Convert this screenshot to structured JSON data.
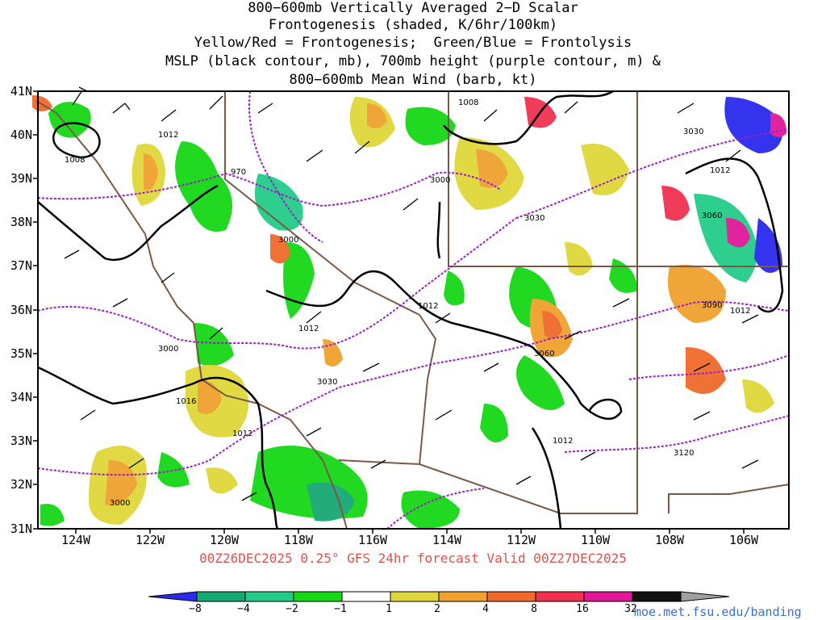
{
  "title_lines": [
    "800−600mb Vertically Averaged 2−D Scalar",
    "Frontogenesis (shaded, K/6hr/100km)",
    "Yellow/Red = Frontogenesis;  Green/Blue = Frontolysis",
    "MSLP (black contour, mb), 700mb height (purple contour, m) &",
    "800−600mb Mean Wind (barb, kt)"
  ],
  "subtitle": "00Z26DEC2025 0.25° GFS 24hr forecast Valid 00Z27DEC2025",
  "url": "moe.met.fsu.edu/banding",
  "lat_labels": [
    "41N",
    "40N",
    "39N",
    "38N",
    "37N",
    "36N",
    "35N",
    "34N",
    "33N",
    "32N",
    "31N"
  ],
  "lon_labels": [
    "124W",
    "122W",
    "120W",
    "118W",
    "116W",
    "114W",
    "112W",
    "110W",
    "108W",
    "106W"
  ],
  "colorbar": {
    "labels": [
      "−8",
      "−4",
      "−2",
      "−1",
      "1",
      "2",
      "4",
      "8",
      "16",
      "32"
    ],
    "colors": [
      "#2a2aee",
      "#17a872",
      "#22cc88",
      "#15d815",
      "#ffffff",
      "#e0d83a",
      "#f0a12f",
      "#ef6a2b",
      "#f03250",
      "#e01898",
      "#111111",
      "#a0a0a0"
    ]
  },
  "contour_labels": {
    "mslp": [
      "1008",
      "1012",
      "1008",
      "1012",
      "1012",
      "1016",
      "1012",
      "1012",
      "1012",
      "1012"
    ],
    "height": [
      "970",
      "3000",
      "3000",
      "3000",
      "3030",
      "3060",
      "3030",
      "3060",
      "3090",
      "3120",
      "3030",
      "3000"
    ]
  },
  "colors": {
    "mslp": "#000000",
    "height": "#9b1fc8",
    "borders": "#7a5a47"
  }
}
